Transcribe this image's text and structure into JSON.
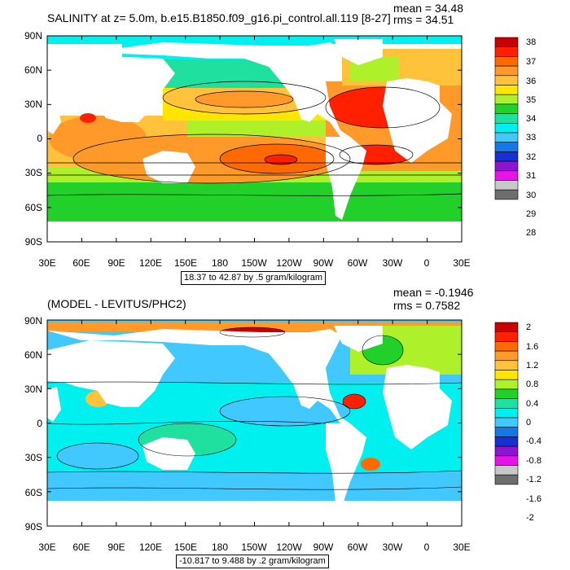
{
  "panel1": {
    "title": "SALINITY at z=    5.0m, b.e15.B1850.f09_g16.pi_control.all.119 [8-27]",
    "mean": "mean = 34.48",
    "rms": "rms = 34.51",
    "range": "18.37 to 42.87 by .5 gram/kilogram",
    "lat_labels": [
      "90N",
      "60N",
      "30N",
      "0",
      "30S",
      "60S",
      "90S"
    ],
    "lon_labels": [
      "30E",
      "60E",
      "90E",
      "120E",
      "150E",
      "180",
      "150W",
      "120W",
      "90W",
      "60W",
      "30W",
      "0",
      "30E"
    ],
    "colorbar": {
      "labels": [
        "38",
        "37",
        "36",
        "35",
        "34",
        "33",
        "32",
        "31",
        "30",
        "29",
        "28"
      ],
      "colors": [
        "#c80000",
        "#ff2000",
        "#ff6a00",
        "#ff9a2a",
        "#ffc23a",
        "#ffe500",
        "#aef02a",
        "#22d02a",
        "#20e0a0",
        "#00f0f0",
        "#40c8ff",
        "#1478e6",
        "#1432d2",
        "#8c14d2",
        "#e614e6",
        "#c8c8c8",
        "#6e6e6e"
      ]
    }
  },
  "panel2": {
    "title": "(MODEL - LEVITUS/PHC2)",
    "mean": "mean = -0.1946",
    "rms": "rms = 0.7582",
    "range": "-10.817 to 9.488 by .2 gram/kilogram",
    "lat_labels": [
      "90N",
      "60N",
      "30N",
      "0",
      "30S",
      "60S",
      "90S"
    ],
    "lon_labels": [
      "30E",
      "60E",
      "90E",
      "120E",
      "150E",
      "180",
      "150W",
      "120W",
      "90W",
      "60W",
      "30W",
      "0",
      "30E"
    ],
    "colorbar": {
      "labels": [
        "2",
        "1.6",
        "1.2",
        "0.8",
        "0.4",
        "0",
        "-0.4",
        "-0.8",
        "-1.2",
        "-1.6",
        "-2"
      ],
      "colors": [
        "#c80000",
        "#ff2000",
        "#ff6a00",
        "#ff9a2a",
        "#ffc23a",
        "#ffe500",
        "#aef02a",
        "#22d02a",
        "#20e0a0",
        "#00f0f0",
        "#40c8ff",
        "#1478e6",
        "#1432d2",
        "#8c14d2",
        "#e614e6",
        "#c8c8c8",
        "#6e6e6e"
      ]
    }
  }
}
